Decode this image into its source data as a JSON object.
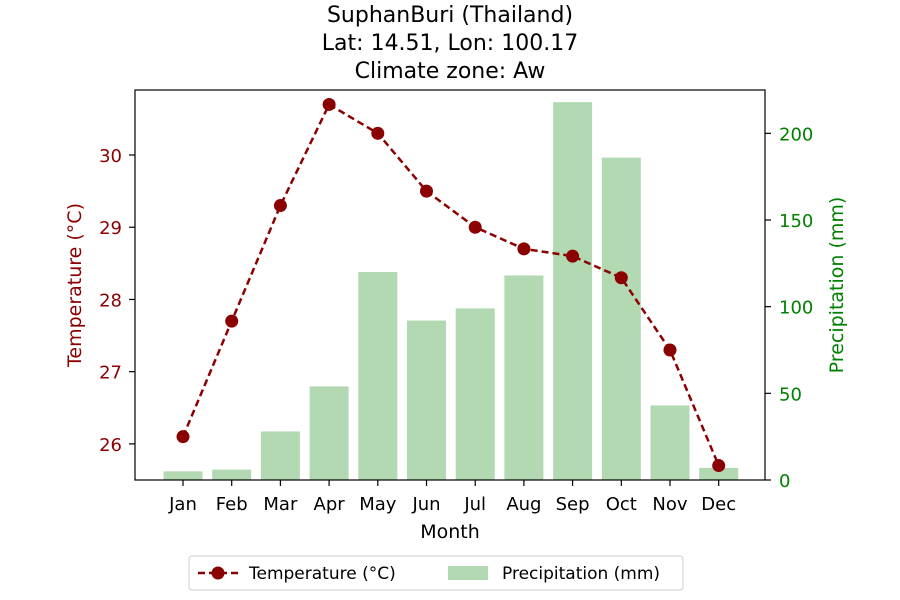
{
  "chart_data": {
    "type": "bar+line",
    "title_lines": [
      "SuphanBuri (Thailand)",
      "Lat: 14.51, Lon: 100.17",
      "Climate zone: Aw"
    ],
    "xlabel": "Month",
    "ylabel_left": "Temperature (°C)",
    "ylabel_right": "Precipitation (mm)",
    "categories": [
      "Jan",
      "Feb",
      "Mar",
      "Apr",
      "May",
      "Jun",
      "Jul",
      "Aug",
      "Sep",
      "Oct",
      "Nov",
      "Dec"
    ],
    "temperature": {
      "name": "Temperature (°C)",
      "color": "#8b0000",
      "values": [
        26.1,
        27.7,
        29.3,
        30.7,
        30.3,
        29.5,
        29.0,
        28.7,
        28.6,
        28.3,
        27.3,
        25.7
      ]
    },
    "precipitation": {
      "name": "Precipitation (mm)",
      "color": "#b2d9b2",
      "values": [
        5,
        6,
        28,
        54,
        120,
        92,
        99,
        118,
        218,
        186,
        43,
        7
      ]
    },
    "ylim_left": [
      25.5,
      30.9
    ],
    "yticks_left": [
      26,
      27,
      28,
      29,
      30
    ],
    "ylim_right": [
      0,
      225
    ],
    "yticks_right": [
      0,
      50,
      100,
      150,
      200
    ],
    "left_axis_color": "#8b0000",
    "right_axis_color": "#008000",
    "legend_placement": "bottom-center",
    "grid": false
  }
}
